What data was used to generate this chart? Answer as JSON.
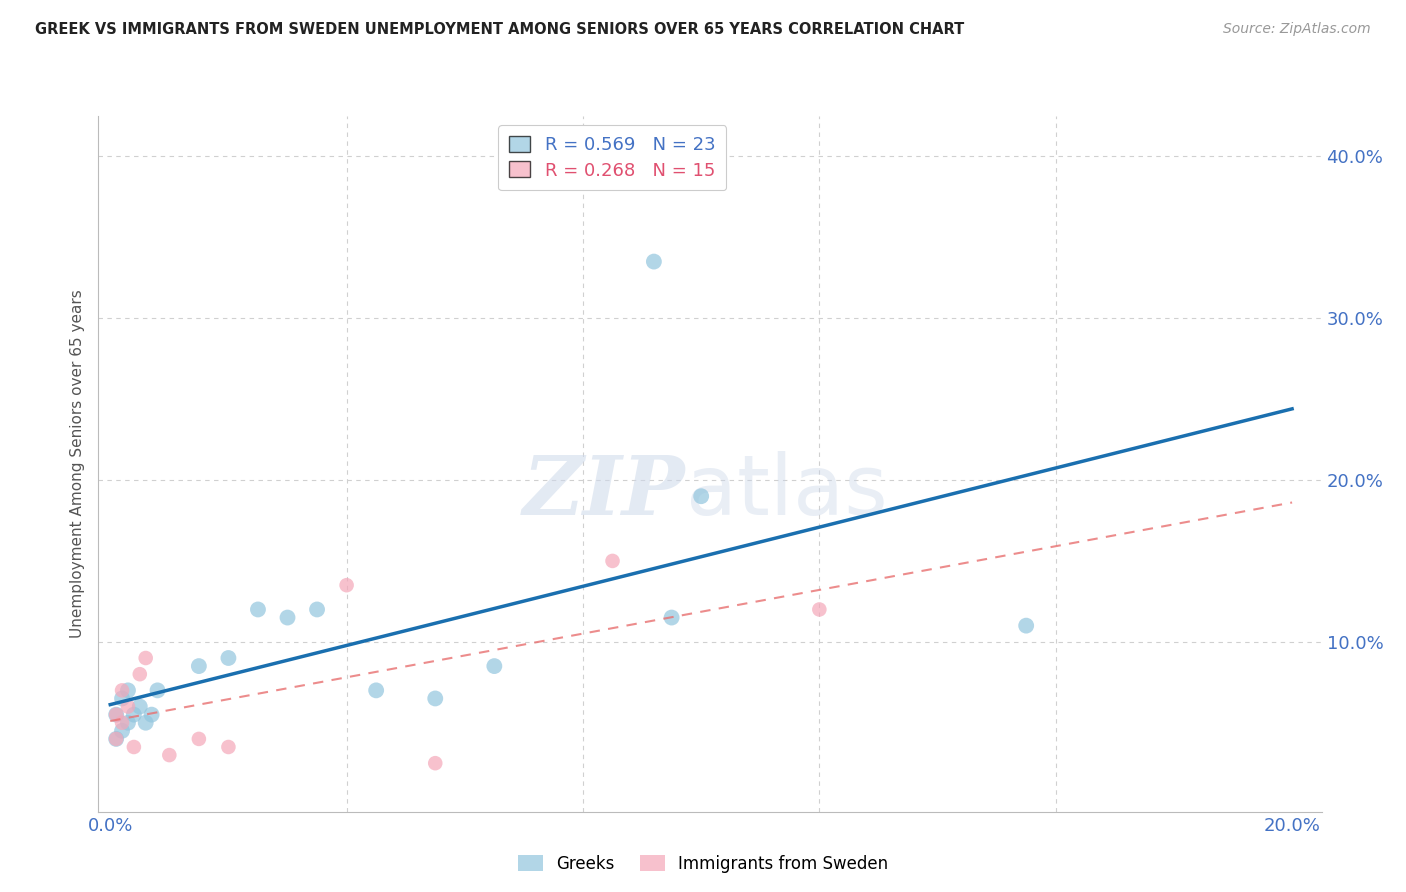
{
  "title": "GREEK VS IMMIGRANTS FROM SWEDEN UNEMPLOYMENT AMONG SENIORS OVER 65 YEARS CORRELATION CHART",
  "source": "Source: ZipAtlas.com",
  "ylabel_label": "Unemployment Among Seniors over 65 years",
  "xlim": [
    -0.002,
    0.205
  ],
  "ylim": [
    -0.005,
    0.425
  ],
  "x_ticks": [
    0.0,
    0.04,
    0.08,
    0.12,
    0.16,
    0.2
  ],
  "y_ticks": [
    0.0,
    0.1,
    0.2,
    0.3,
    0.4
  ],
  "blue_color": "#92c5de",
  "pink_color": "#f4a7b9",
  "line_blue": "#1a6faf",
  "line_pink": "#e87070",
  "greeks_x": [
    0.001,
    0.001,
    0.002,
    0.002,
    0.003,
    0.003,
    0.004,
    0.005,
    0.006,
    0.007,
    0.008,
    0.015,
    0.02,
    0.025,
    0.03,
    0.035,
    0.045,
    0.055,
    0.065,
    0.092,
    0.1,
    0.095,
    0.155
  ],
  "greeks_y": [
    0.04,
    0.055,
    0.045,
    0.065,
    0.05,
    0.07,
    0.055,
    0.06,
    0.05,
    0.055,
    0.07,
    0.085,
    0.09,
    0.12,
    0.115,
    0.12,
    0.07,
    0.065,
    0.085,
    0.335,
    0.19,
    0.115,
    0.11
  ],
  "sweden_x": [
    0.001,
    0.001,
    0.002,
    0.002,
    0.003,
    0.004,
    0.005,
    0.006,
    0.01,
    0.015,
    0.02,
    0.04,
    0.055,
    0.085,
    0.12
  ],
  "sweden_y": [
    0.04,
    0.055,
    0.05,
    0.07,
    0.06,
    0.035,
    0.08,
    0.09,
    0.03,
    0.04,
    0.035,
    0.135,
    0.025,
    0.15,
    0.12
  ],
  "background_color": "#ffffff",
  "grid_color": "#d0d0d0"
}
